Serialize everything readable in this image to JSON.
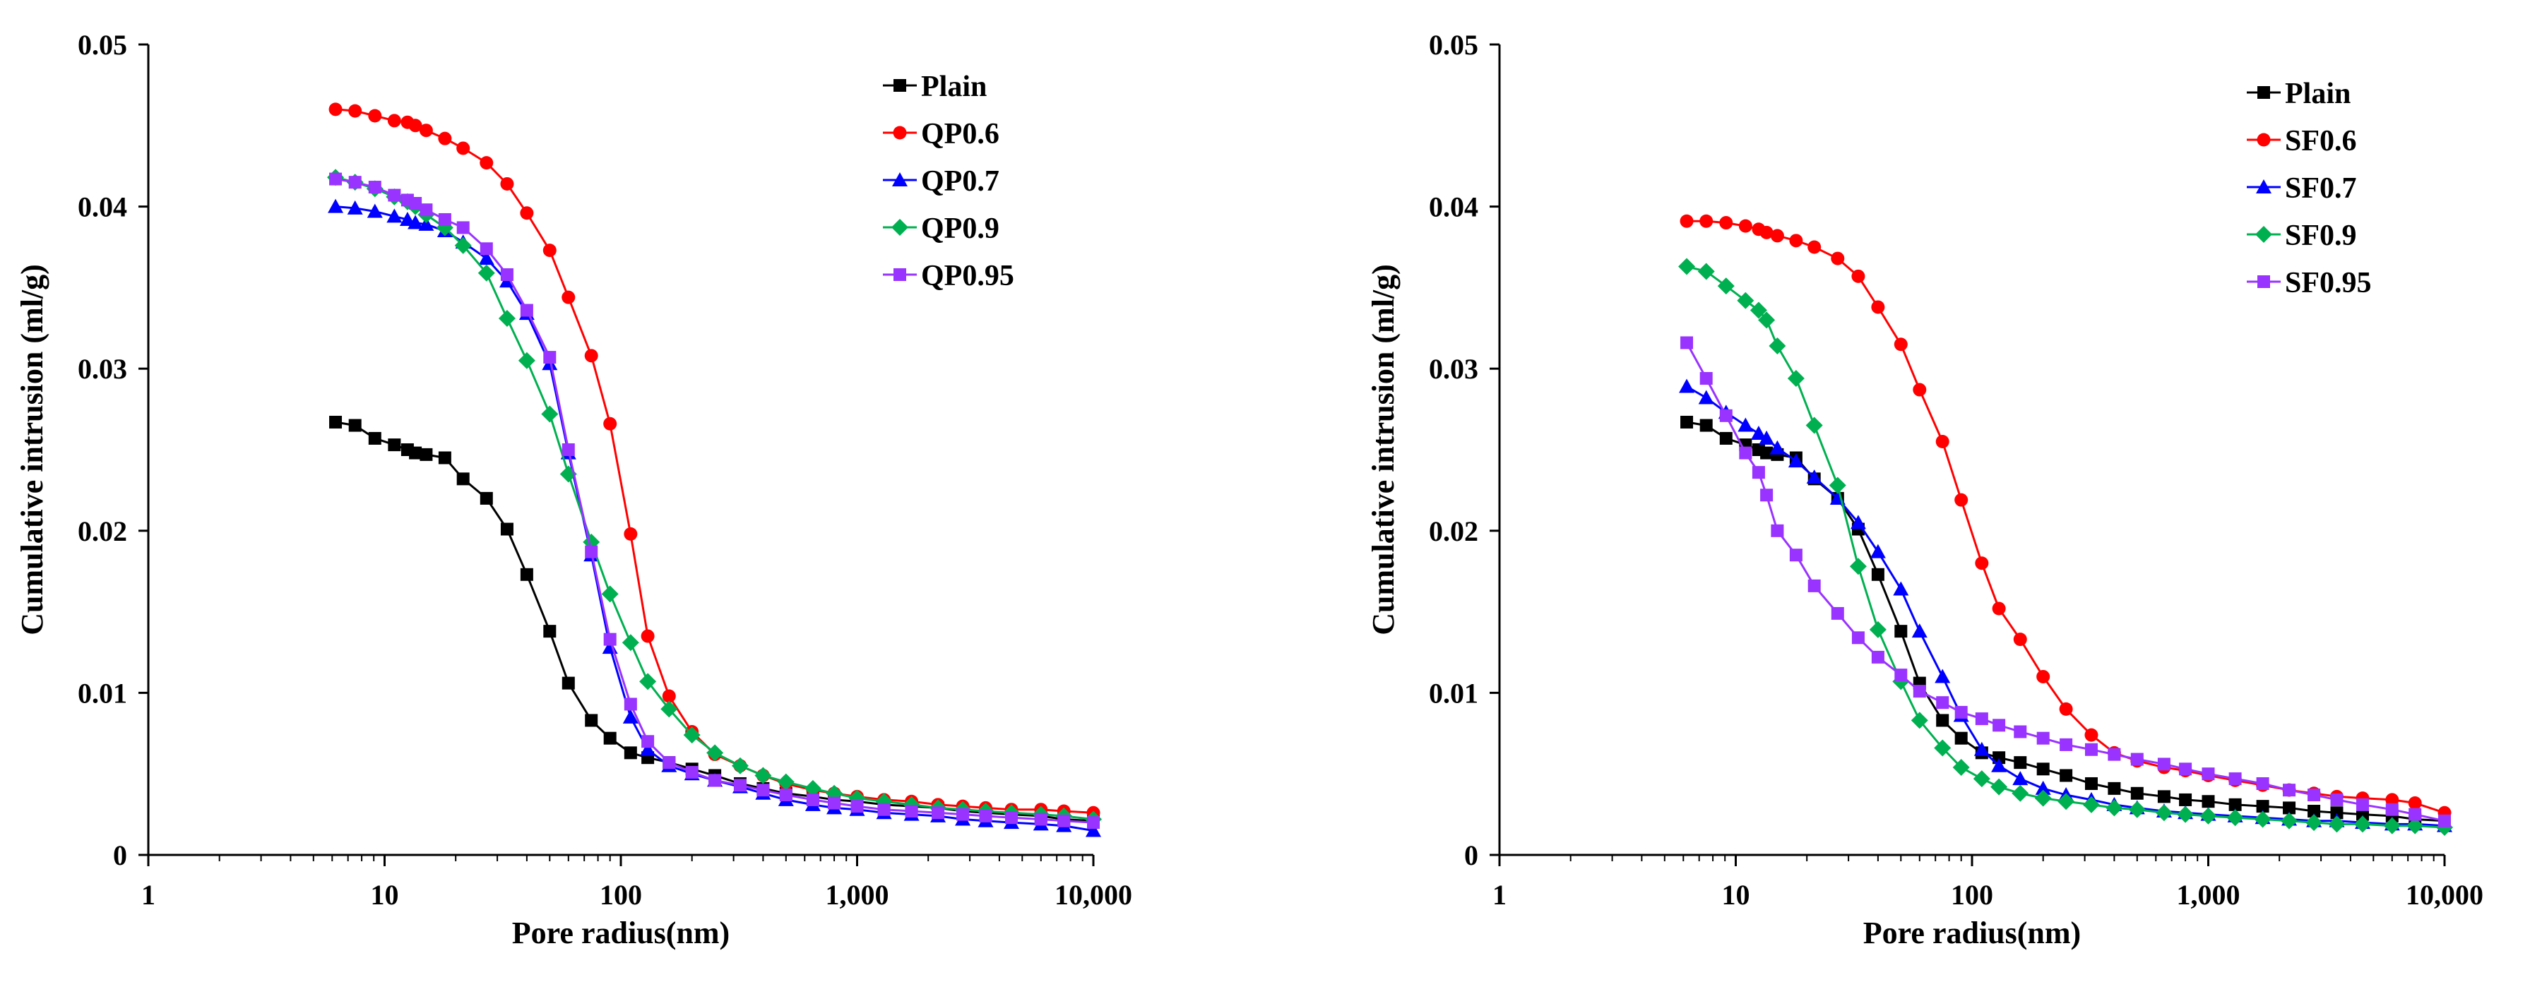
{
  "chart_data": [
    {
      "type": "line",
      "title": "",
      "xlabel": "Pore radius(nm)",
      "ylabel": "Cumulative intrusion (ml/g)",
      "xscale": "log",
      "xlim": [
        1,
        10000
      ],
      "ylim": [
        0,
        0.05
      ],
      "legend_position": "top-right",
      "x_ticks": [
        1,
        10,
        100,
        1000,
        10000
      ],
      "x_tick_labels": [
        "1",
        "10",
        "100",
        "1,000",
        "10,000"
      ],
      "y_ticks": [
        0,
        0.01,
        0.02,
        0.03,
        0.04,
        0.05
      ],
      "y_tick_labels": [
        "0",
        "0.01",
        "0.02",
        "0.03",
        "0.04",
        "0.05"
      ],
      "series": [
        {
          "name": "Plain",
          "color": "#000000",
          "marker": "square",
          "x": [
            6.2,
            7.5,
            9.1,
            11,
            12.5,
            13.5,
            15,
            18,
            21.5,
            27,
            33,
            40,
            50,
            60,
            75,
            90,
            110,
            130,
            160,
            200,
            250,
            320,
            400,
            500,
            650,
            800,
            1000,
            1300,
            1700,
            2200,
            2800,
            3500,
            4500,
            6000,
            7500,
            10000
          ],
          "y": [
            0.0267,
            0.0265,
            0.0257,
            0.0253,
            0.025,
            0.0248,
            0.0247,
            0.0245,
            0.0232,
            0.022,
            0.0201,
            0.0173,
            0.0138,
            0.0106,
            0.0083,
            0.0072,
            0.0063,
            0.006,
            0.0057,
            0.0053,
            0.0049,
            0.0044,
            0.0041,
            0.0038,
            0.0036,
            0.0034,
            0.0033,
            0.0031,
            0.003,
            0.0029,
            0.0027,
            0.0026,
            0.0025,
            0.0024,
            0.0022,
            0.0021
          ]
        },
        {
          "name": "QP0.6",
          "color": "#ff0000",
          "marker": "circle",
          "x": [
            6.2,
            7.5,
            9.1,
            11,
            12.5,
            13.5,
            15,
            18,
            21.5,
            27,
            33,
            40,
            50,
            60,
            75,
            90,
            110,
            130,
            160,
            200,
            250,
            320,
            400,
            500,
            650,
            800,
            1000,
            1300,
            1700,
            2200,
            2800,
            3500,
            4500,
            6000,
            7500,
            10000
          ],
          "y": [
            0.046,
            0.0459,
            0.0456,
            0.0453,
            0.0452,
            0.045,
            0.0447,
            0.0442,
            0.0436,
            0.0427,
            0.0414,
            0.0396,
            0.0373,
            0.0344,
            0.0308,
            0.0266,
            0.0198,
            0.0135,
            0.0098,
            0.0076,
            0.0062,
            0.0055,
            0.0049,
            0.0044,
            0.004,
            0.0038,
            0.0036,
            0.0034,
            0.0033,
            0.0031,
            0.003,
            0.0029,
            0.0028,
            0.0028,
            0.0027,
            0.0026
          ]
        },
        {
          "name": "QP0.7",
          "color": "#0000ff",
          "marker": "triangle",
          "x": [
            6.2,
            7.5,
            9.1,
            11,
            12.5,
            13.5,
            15,
            18,
            21.5,
            27,
            33,
            40,
            50,
            60,
            75,
            90,
            110,
            130,
            160,
            200,
            250,
            320,
            400,
            500,
            650,
            800,
            1000,
            1300,
            1700,
            2200,
            2800,
            3500,
            4500,
            6000,
            7500,
            10000
          ],
          "y": [
            0.04,
            0.0399,
            0.0397,
            0.0394,
            0.0392,
            0.039,
            0.0389,
            0.0385,
            0.0378,
            0.0368,
            0.0354,
            0.0334,
            0.0303,
            0.0248,
            0.0185,
            0.0128,
            0.0085,
            0.0065,
            0.0055,
            0.005,
            0.0046,
            0.0042,
            0.0038,
            0.0034,
            0.0031,
            0.0029,
            0.0028,
            0.0026,
            0.0025,
            0.0024,
            0.0022,
            0.0021,
            0.002,
            0.0019,
            0.0018,
            0.0015
          ]
        },
        {
          "name": "QP0.9",
          "color": "#00b050",
          "marker": "diamond",
          "x": [
            6.2,
            7.5,
            9.1,
            11,
            12.5,
            13.5,
            15,
            18,
            21.5,
            27,
            33,
            40,
            50,
            60,
            75,
            90,
            110,
            130,
            160,
            200,
            250,
            320,
            400,
            500,
            650,
            800,
            1000,
            1300,
            1700,
            2200,
            2800,
            3500,
            4500,
            6000,
            7500,
            10000
          ],
          "y": [
            0.0418,
            0.0415,
            0.0411,
            0.0406,
            0.0403,
            0.04,
            0.0395,
            0.0387,
            0.0376,
            0.0359,
            0.0331,
            0.0305,
            0.0272,
            0.0235,
            0.0193,
            0.0161,
            0.0131,
            0.0107,
            0.009,
            0.0074,
            0.0063,
            0.0055,
            0.0049,
            0.0045,
            0.0041,
            0.0038,
            0.0035,
            0.0033,
            0.0031,
            0.0029,
            0.0028,
            0.0027,
            0.0026,
            0.0025,
            0.0024,
            0.0022
          ]
        },
        {
          "name": "QP0.95",
          "color": "#9933ff",
          "marker": "square",
          "x": [
            6.2,
            7.5,
            9.1,
            11,
            12.5,
            13.5,
            15,
            18,
            21.5,
            27,
            33,
            40,
            50,
            60,
            75,
            90,
            110,
            130,
            160,
            200,
            250,
            320,
            400,
            500,
            650,
            800,
            1000,
            1300,
            1700,
            2200,
            2800,
            3500,
            4500,
            6000,
            7500,
            10000
          ],
          "y": [
            0.0417,
            0.0415,
            0.0412,
            0.0407,
            0.0404,
            0.0402,
            0.0398,
            0.0392,
            0.0387,
            0.0374,
            0.0358,
            0.0336,
            0.0307,
            0.025,
            0.0187,
            0.0133,
            0.0093,
            0.007,
            0.0057,
            0.0051,
            0.0046,
            0.0043,
            0.004,
            0.0037,
            0.0034,
            0.0032,
            0.003,
            0.0028,
            0.0027,
            0.0026,
            0.0025,
            0.0024,
            0.0023,
            0.0022,
            0.0021,
            0.002
          ]
        }
      ]
    },
    {
      "type": "line",
      "title": "",
      "xlabel": "Pore radius(nm)",
      "ylabel": "Cumulative intrusion (ml/g)",
      "xscale": "log",
      "xlim": [
        1,
        10000
      ],
      "ylim": [
        0,
        0.05
      ],
      "legend_position": "top-right",
      "x_ticks": [
        1,
        10,
        100,
        1000,
        10000
      ],
      "x_tick_labels": [
        "1",
        "10",
        "100",
        "1,000",
        "10,000"
      ],
      "y_ticks": [
        0,
        0.01,
        0.02,
        0.03,
        0.04,
        0.05
      ],
      "y_tick_labels": [
        "0",
        "0.01",
        "0.02",
        "0.03",
        "0.04",
        "0.05"
      ],
      "series": [
        {
          "name": "Plain",
          "color": "#000000",
          "marker": "square",
          "x": [
            6.2,
            7.5,
            9.1,
            11,
            12.5,
            13.5,
            15,
            18,
            21.5,
            27,
            33,
            40,
            50,
            60,
            75,
            90,
            110,
            130,
            160,
            200,
            250,
            320,
            400,
            500,
            650,
            800,
            1000,
            1300,
            1700,
            2200,
            2800,
            3500,
            4500,
            6000,
            7500,
            10000
          ],
          "y": [
            0.0267,
            0.0265,
            0.0257,
            0.0253,
            0.025,
            0.0248,
            0.0247,
            0.0245,
            0.0232,
            0.022,
            0.0201,
            0.0173,
            0.0138,
            0.0106,
            0.0083,
            0.0072,
            0.0063,
            0.006,
            0.0057,
            0.0053,
            0.0049,
            0.0044,
            0.0041,
            0.0038,
            0.0036,
            0.0034,
            0.0033,
            0.0031,
            0.003,
            0.0029,
            0.0027,
            0.0026,
            0.0025,
            0.0024,
            0.0022,
            0.0021
          ]
        },
        {
          "name": "SF0.6",
          "color": "#ff0000",
          "marker": "circle",
          "x": [
            6.2,
            7.5,
            9.1,
            11,
            12.5,
            13.5,
            15,
            18,
            21.5,
            27,
            33,
            40,
            50,
            60,
            75,
            90,
            110,
            130,
            160,
            200,
            250,
            320,
            400,
            500,
            650,
            800,
            1000,
            1300,
            1700,
            2200,
            2800,
            3500,
            4500,
            6000,
            7500,
            10000
          ],
          "y": [
            0.0391,
            0.0391,
            0.039,
            0.0388,
            0.0386,
            0.0384,
            0.0382,
            0.0379,
            0.0375,
            0.0368,
            0.0357,
            0.0338,
            0.0315,
            0.0287,
            0.0255,
            0.0219,
            0.018,
            0.0152,
            0.0133,
            0.011,
            0.009,
            0.0074,
            0.0063,
            0.0058,
            0.0054,
            0.0052,
            0.0049,
            0.0046,
            0.0043,
            0.004,
            0.0038,
            0.0036,
            0.0035,
            0.0034,
            0.0032,
            0.0026
          ]
        },
        {
          "name": "SF0.7",
          "color": "#0000ff",
          "marker": "triangle",
          "x": [
            6.2,
            7.5,
            9.1,
            11,
            12.5,
            13.5,
            15,
            18,
            21.5,
            27,
            33,
            40,
            50,
            60,
            75,
            90,
            110,
            130,
            160,
            200,
            250,
            320,
            400,
            500,
            650,
            800,
            1000,
            1300,
            1700,
            2200,
            2800,
            3500,
            4500,
            6000,
            7500,
            10000
          ],
          "y": [
            0.0289,
            0.0282,
            0.0273,
            0.0265,
            0.026,
            0.0257,
            0.0251,
            0.0243,
            0.0233,
            0.022,
            0.0205,
            0.0187,
            0.0164,
            0.0138,
            0.011,
            0.0086,
            0.0065,
            0.0055,
            0.0047,
            0.0041,
            0.0037,
            0.0034,
            0.0031,
            0.0029,
            0.0027,
            0.0026,
            0.0025,
            0.0024,
            0.0023,
            0.0022,
            0.0021,
            0.0021,
            0.002,
            0.0019,
            0.0019,
            0.0018
          ]
        },
        {
          "name": "SF0.9",
          "color": "#00b050",
          "marker": "diamond",
          "x": [
            6.2,
            7.5,
            9.1,
            11,
            12.5,
            13.5,
            15,
            18,
            21.5,
            27,
            33,
            40,
            50,
            60,
            75,
            90,
            110,
            130,
            160,
            200,
            250,
            320,
            400,
            500,
            650,
            800,
            1000,
            1300,
            1700,
            2200,
            2800,
            3500,
            4500,
            6000,
            7500,
            10000
          ],
          "y": [
            0.0363,
            0.036,
            0.0351,
            0.0342,
            0.0336,
            0.033,
            0.0314,
            0.0294,
            0.0265,
            0.0228,
            0.0178,
            0.0139,
            0.0107,
            0.0083,
            0.0066,
            0.0054,
            0.0047,
            0.0042,
            0.0038,
            0.0035,
            0.0033,
            0.0031,
            0.0029,
            0.0028,
            0.0026,
            0.0025,
            0.0024,
            0.0023,
            0.0022,
            0.0021,
            0.002,
            0.0019,
            0.0019,
            0.0018,
            0.0018,
            0.0017
          ]
        },
        {
          "name": "SF0.95",
          "color": "#9933ff",
          "marker": "square",
          "x": [
            6.2,
            7.5,
            9.1,
            11,
            12.5,
            13.5,
            15,
            18,
            21.5,
            27,
            33,
            40,
            50,
            60,
            75,
            90,
            110,
            130,
            160,
            200,
            250,
            320,
            400,
            500,
            650,
            800,
            1000,
            1300,
            1700,
            2200,
            2800,
            3500,
            4500,
            6000,
            7500,
            10000
          ],
          "y": [
            0.0316,
            0.0294,
            0.0271,
            0.0248,
            0.0236,
            0.0222,
            0.02,
            0.0185,
            0.0166,
            0.0149,
            0.0134,
            0.0122,
            0.0111,
            0.0101,
            0.0094,
            0.0088,
            0.0084,
            0.008,
            0.0076,
            0.0072,
            0.0068,
            0.0065,
            0.0062,
            0.0059,
            0.0056,
            0.0053,
            0.005,
            0.0047,
            0.0044,
            0.004,
            0.0037,
            0.0034,
            0.0031,
            0.0028,
            0.0025,
            0.0021
          ]
        }
      ]
    }
  ]
}
